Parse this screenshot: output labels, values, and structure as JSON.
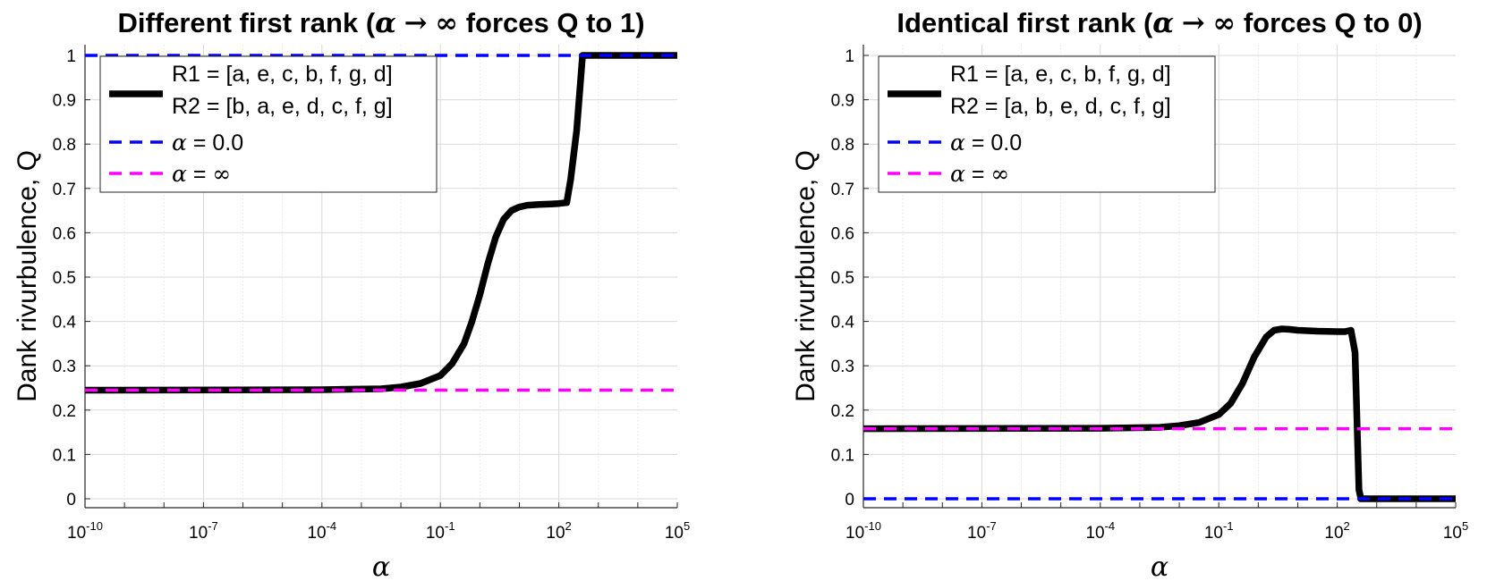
{
  "chart_data": [
    {
      "type": "line",
      "title": "Different first rank (α → ∞ forces Q to 1)",
      "xlabel": "α",
      "ylabel": "Dank rivurbulence, Q",
      "xscale": "log",
      "xlim_exponent": [
        -10,
        5
      ],
      "ylim": [
        0,
        1
      ],
      "xtick_labels": [
        "10-10",
        "10-7",
        "10-4",
        "10-1",
        "102",
        "105"
      ],
      "ytick_labels": [
        "0",
        "0.1",
        "0.2",
        "0.3",
        "0.4",
        "0.5",
        "0.6",
        "0.7",
        "0.8",
        "0.9",
        "1"
      ],
      "grid": true,
      "legend_position": "top-left",
      "legend": [
        {
          "label_line1": "R1 = [a, e, c, b, f, g, d]",
          "label_line2": "R2 = [b, a, e, d, c, f, g]",
          "style": "solid",
          "color": "#000000"
        },
        {
          "label": "α = 0.0",
          "style": "dashed",
          "color": "#0000ff"
        },
        {
          "label": "α = ∞",
          "style": "dashed",
          "color": "#ff00ff"
        }
      ],
      "series": [
        {
          "name": "R1 = [a, e, c, b, f, g, d] / R2 = [b, a, e, d, c, f, g]",
          "color": "#000000",
          "style": "solid",
          "x_log10": [
            -10,
            -4,
            -2.5,
            -2,
            -1.5,
            -1,
            -0.7,
            -0.4,
            -0.2,
            0,
            0.2,
            0.4,
            0.6,
            0.8,
            1,
            1.2,
            1.5,
            1.8,
            2,
            2.2,
            2.3,
            2.45,
            2.6,
            2.7,
            3,
            5
          ],
          "y": [
            0.245,
            0.246,
            0.248,
            0.252,
            0.26,
            0.278,
            0.305,
            0.35,
            0.4,
            0.46,
            0.53,
            0.59,
            0.63,
            0.65,
            0.658,
            0.662,
            0.664,
            0.665,
            0.666,
            0.668,
            0.72,
            0.83,
            1,
            1,
            1,
            1
          ]
        },
        {
          "name": "α = 0.0",
          "color": "#0000ff",
          "style": "dashed",
          "x_log10": [
            -10,
            5
          ],
          "y": [
            1,
            1
          ]
        },
        {
          "name": "α = ∞",
          "color": "#ff00ff",
          "style": "dashed",
          "x_log10": [
            -10,
            5
          ],
          "y": [
            0.245,
            0.245
          ]
        }
      ]
    },
    {
      "type": "line",
      "title": "Identical first rank (α → ∞ forces Q to 0)",
      "xlabel": "α",
      "ylabel": "Dank rivurbulence, Q",
      "xscale": "log",
      "xlim_exponent": [
        -10,
        5
      ],
      "ylim": [
        0,
        1
      ],
      "xtick_labels": [
        "10-10",
        "10-7",
        "10-4",
        "10-1",
        "102",
        "105"
      ],
      "ytick_labels": [
        "0",
        "0.1",
        "0.2",
        "0.3",
        "0.4",
        "0.5",
        "0.6",
        "0.7",
        "0.8",
        "0.9",
        "1"
      ],
      "grid": true,
      "legend_position": "top-left",
      "legend": [
        {
          "label_line1": "R1 = [a, e, c, b, f, g, d]",
          "label_line2": "R2 = [a, b, e, d, c, f, g]",
          "style": "solid",
          "color": "#000000"
        },
        {
          "label": "α = 0.0",
          "style": "dashed",
          "color": "#0000ff"
        },
        {
          "label": "α = ∞",
          "style": "dashed",
          "color": "#ff00ff"
        }
      ],
      "series": [
        {
          "name": "R1 = [a, e, c, b, f, g, d] / R2 = [a, b, e, d, c, f, g]",
          "color": "#000000",
          "style": "solid",
          "x_log10": [
            -10,
            -4,
            -2.5,
            -2,
            -1.5,
            -1,
            -0.7,
            -0.4,
            -0.1,
            0.2,
            0.4,
            0.6,
            0.8,
            1,
            1.5,
            2,
            2.2,
            2.35,
            2.45,
            2.55,
            2.6,
            3,
            5
          ],
          "y": [
            0.158,
            0.159,
            0.161,
            0.165,
            0.172,
            0.19,
            0.215,
            0.26,
            0.32,
            0.365,
            0.38,
            0.383,
            0.382,
            0.38,
            0.378,
            0.377,
            0.377,
            0.38,
            0.33,
            0.02,
            0,
            0,
            0
          ]
        },
        {
          "name": "α = 0.0",
          "color": "#0000ff",
          "style": "dashed",
          "x_log10": [
            -10,
            5
          ],
          "y": [
            0,
            0
          ]
        },
        {
          "name": "α = ∞",
          "color": "#ff00ff",
          "style": "dashed",
          "x_log10": [
            -10,
            5
          ],
          "y": [
            0.158,
            0.158
          ]
        }
      ]
    }
  ]
}
